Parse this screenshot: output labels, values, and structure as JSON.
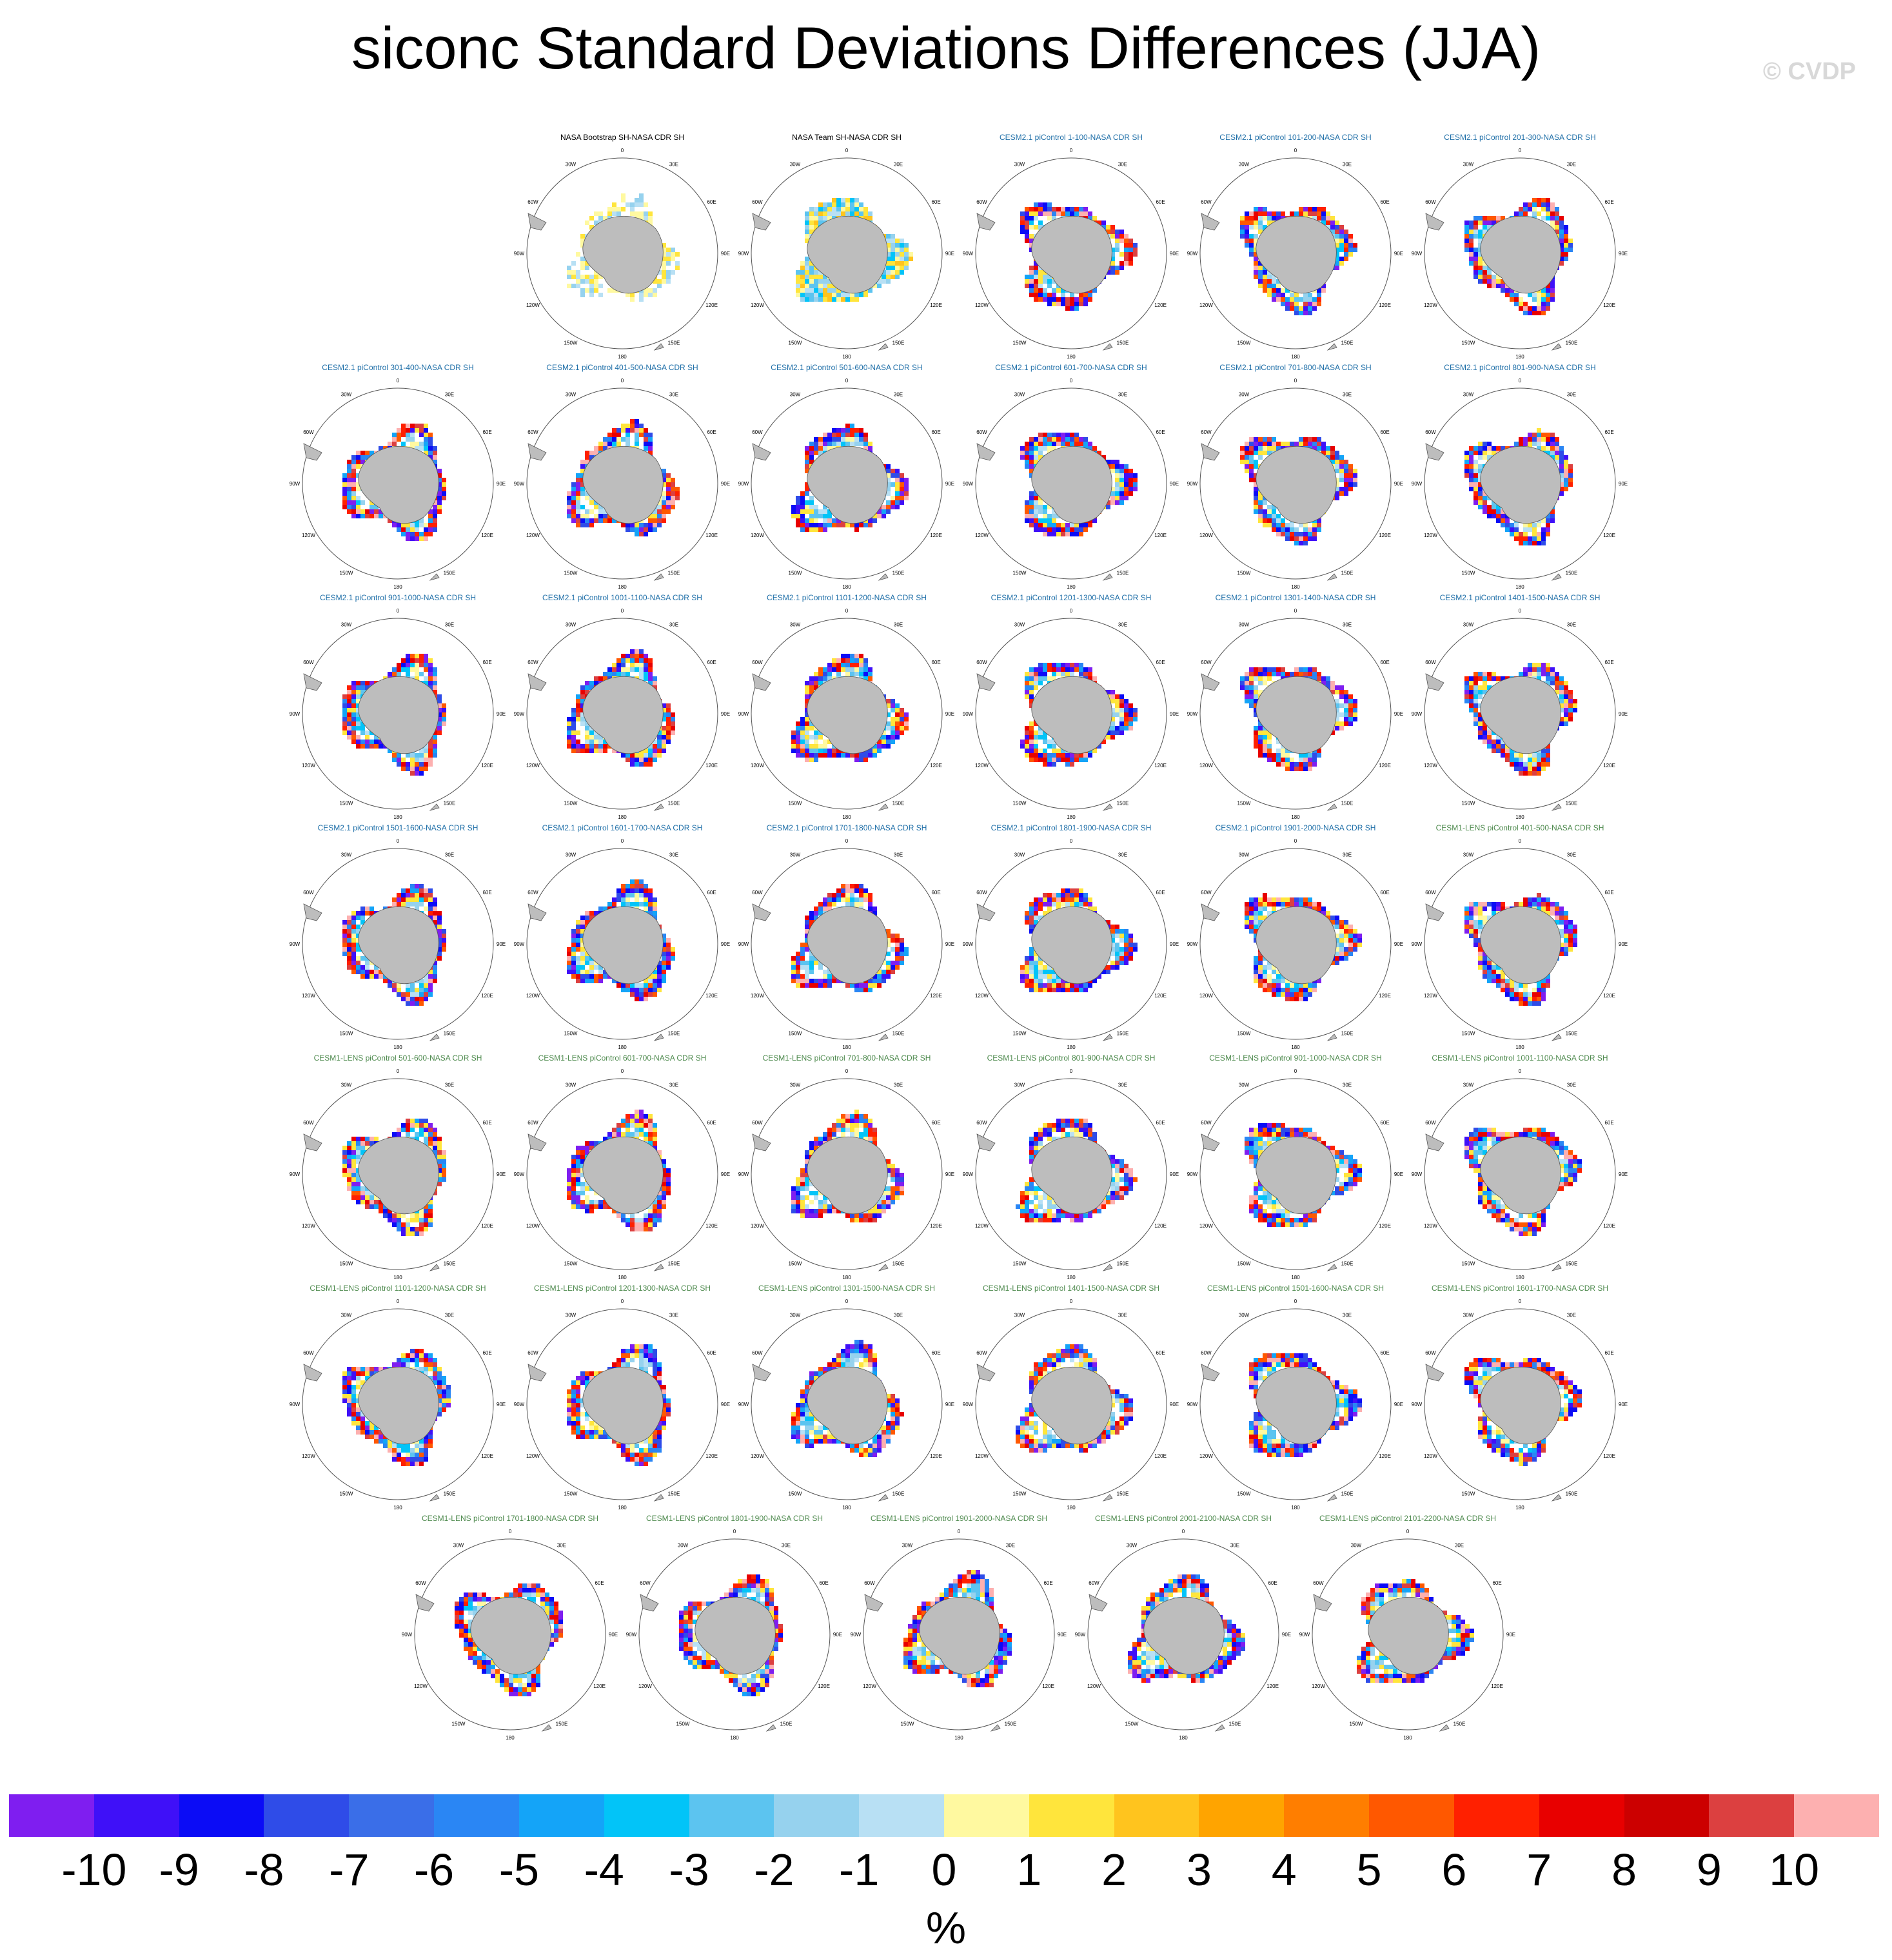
{
  "title": "siconc Standard Deviations Differences (JJA)",
  "watermark": "© CVDP",
  "units": "%",
  "lon_labels": [
    "0",
    "30E",
    "60E",
    "90E",
    "120E",
    "150E",
    "180",
    "150W",
    "120W",
    "90W",
    "60W",
    "30W"
  ],
  "colorbar": {
    "colors": [
      "#7f1ef0",
      "#3f10f8",
      "#0b0cf6",
      "#2f4ce8",
      "#3a6ee8",
      "#2a86f4",
      "#14a4f8",
      "#02c4f8",
      "#5cc4f0",
      "#96d2ee",
      "#b8e0f4",
      "#fff9a0",
      "#ffe53c",
      "#ffc41e",
      "#ffa400",
      "#ff7e00",
      "#ff5800",
      "#ff2000",
      "#e80000",
      "#cc0000",
      "#dc4040",
      "#fdb0b0"
    ],
    "labels": [
      "-10",
      "-9",
      "-8",
      "-7",
      "-6",
      "-5",
      "-4",
      "-3",
      "-2",
      "-1",
      "0",
      "1",
      "2",
      "3",
      "4",
      "5",
      "6",
      "7",
      "8",
      "9",
      "10"
    ]
  },
  "panels": [
    {
      "title": "NASA Bootstrap SH-NASA CDR SH",
      "group": "obs1"
    },
    {
      "title": "NASA Team SH-NASA CDR SH",
      "group": "obs2"
    },
    {
      "title": "CESM2.1 piControl 1-100-NASA CDR SH",
      "group": "cesm2"
    },
    {
      "title": "CESM2.1 piControl 101-200-NASA CDR SH",
      "group": "cesm2"
    },
    {
      "title": "CESM2.1 piControl 201-300-NASA CDR SH",
      "group": "cesm2"
    },
    {
      "title": "CESM2.1 piControl 301-400-NASA CDR SH",
      "group": "cesm2"
    },
    {
      "title": "CESM2.1 piControl 401-500-NASA CDR SH",
      "group": "cesm2"
    },
    {
      "title": "CESM2.1 piControl 501-600-NASA CDR SH",
      "group": "cesm2"
    },
    {
      "title": "CESM2.1 piControl 601-700-NASA CDR SH",
      "group": "cesm2"
    },
    {
      "title": "CESM2.1 piControl 701-800-NASA CDR SH",
      "group": "cesm2"
    },
    {
      "title": "CESM2.1 piControl 801-900-NASA CDR SH",
      "group": "cesm2"
    },
    {
      "title": "CESM2.1 piControl 901-1000-NASA CDR SH",
      "group": "cesm2"
    },
    {
      "title": "CESM2.1 piControl 1001-1100-NASA CDR SH",
      "group": "cesm2"
    },
    {
      "title": "CESM2.1 piControl 1101-1200-NASA CDR SH",
      "group": "cesm2"
    },
    {
      "title": "CESM2.1 piControl 1201-1300-NASA CDR SH",
      "group": "cesm2"
    },
    {
      "title": "CESM2.1 piControl 1301-1400-NASA CDR SH",
      "group": "cesm2"
    },
    {
      "title": "CESM2.1 piControl 1401-1500-NASA CDR SH",
      "group": "cesm2"
    },
    {
      "title": "CESM2.1 piControl 1501-1600-NASA CDR SH",
      "group": "cesm2"
    },
    {
      "title": "CESM2.1 piControl 1601-1700-NASA CDR SH",
      "group": "cesm2"
    },
    {
      "title": "CESM2.1 piControl 1701-1800-NASA CDR SH",
      "group": "cesm2"
    },
    {
      "title": "CESM2.1 piControl 1801-1900-NASA CDR SH",
      "group": "cesm2"
    },
    {
      "title": "CESM2.1 piControl 1901-2000-NASA CDR SH",
      "group": "cesm2"
    },
    {
      "title": "CESM1-LENS piControl 401-500-NASA CDR SH",
      "group": "cesm1"
    },
    {
      "title": "CESM1-LENS piControl 501-600-NASA CDR SH",
      "group": "cesm1"
    },
    {
      "title": "CESM1-LENS piControl 601-700-NASA CDR SH",
      "group": "cesm1"
    },
    {
      "title": "CESM1-LENS piControl 701-800-NASA CDR SH",
      "group": "cesm1"
    },
    {
      "title": "CESM1-LENS piControl 801-900-NASA CDR SH",
      "group": "cesm1"
    },
    {
      "title": "CESM1-LENS piControl 901-1000-NASA CDR SH",
      "group": "cesm1"
    },
    {
      "title": "CESM1-LENS piControl 1001-1100-NASA CDR SH",
      "group": "cesm1"
    },
    {
      "title": "CESM1-LENS piControl 1101-1200-NASA CDR SH",
      "group": "cesm1"
    },
    {
      "title": "CESM1-LENS piControl 1201-1300-NASA CDR SH",
      "group": "cesm1"
    },
    {
      "title": "CESM1-LENS piControl 1301-1500-NASA CDR SH",
      "group": "cesm1"
    },
    {
      "title": "CESM1-LENS piControl 1401-1500-NASA CDR SH",
      "group": "cesm1"
    },
    {
      "title": "CESM1-LENS piControl 1501-1600-NASA CDR SH",
      "group": "cesm1"
    },
    {
      "title": "CESM1-LENS piControl 1601-1700-NASA CDR SH",
      "group": "cesm1"
    },
    {
      "title": "CESM1-LENS piControl 1701-1800-NASA CDR SH",
      "group": "cesm1"
    },
    {
      "title": "CESM1-LENS piControl 1801-1900-NASA CDR SH",
      "group": "cesm1"
    },
    {
      "title": "CESM1-LENS piControl 1901-2000-NASA CDR SH",
      "group": "cesm1"
    },
    {
      "title": "CESM1-LENS piControl 2001-2100-NASA CDR SH",
      "group": "cesm1"
    },
    {
      "title": "CESM1-LENS piControl 2101-2200-NASA CDR SH",
      "group": "cesm1"
    }
  ],
  "group_colors": {
    "obs1": "#000000",
    "obs2": "#000000",
    "cesm2": "#1f6fa8",
    "cesm1": "#4e8a4e"
  }
}
